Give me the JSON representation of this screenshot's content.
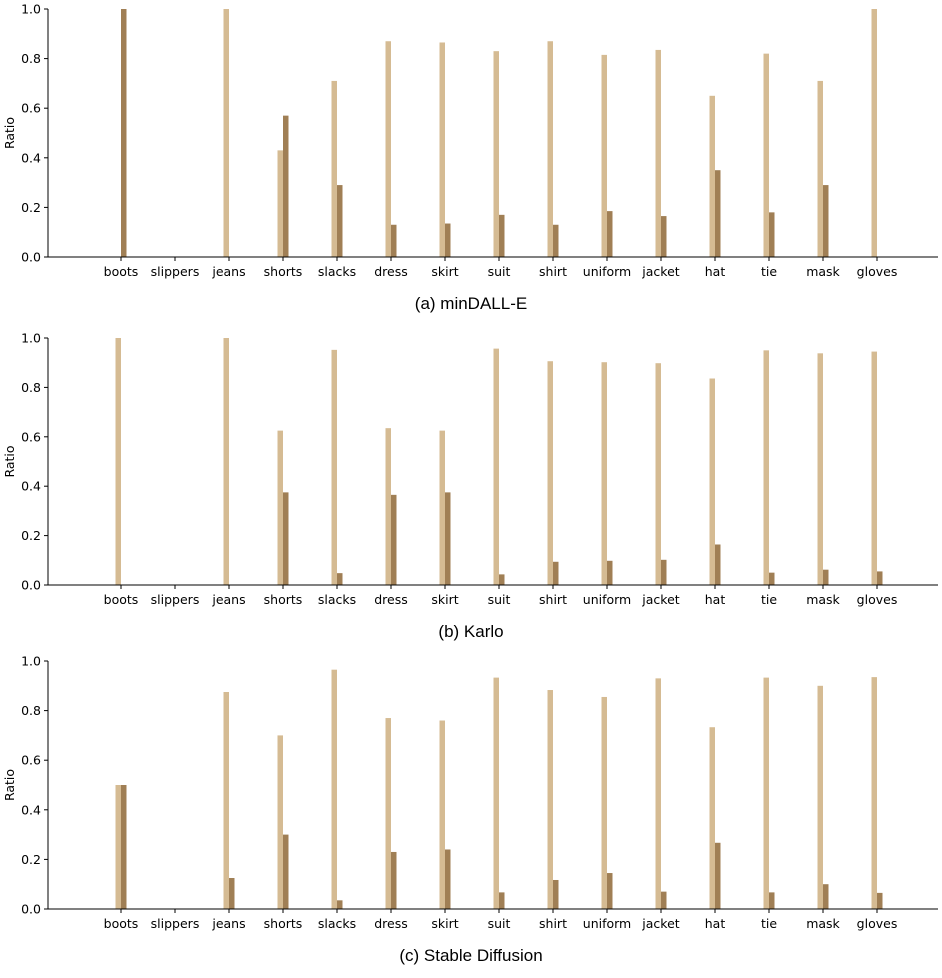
{
  "colors": {
    "light": "#d5bb93",
    "dark": "#a07f55",
    "axis": "#000000"
  },
  "chart_data": [
    {
      "type": "bar",
      "caption": "(a) minDALL-E",
      "ylabel": "Ratio",
      "ylim": [
        0,
        1.0
      ],
      "yticks": [
        "0.0",
        "0.2",
        "0.4",
        "0.6",
        "0.8",
        "1.0"
      ],
      "categories": [
        "boots",
        "slippers",
        "jeans",
        "shorts",
        "slacks",
        "dress",
        "skirt",
        "suit",
        "shirt",
        "uniform",
        "jacket",
        "hat",
        "tie",
        "mask",
        "gloves"
      ],
      "series": [
        {
          "values": [
            0,
            0,
            1.0,
            0.43,
            0.71,
            0.87,
            0.865,
            0.83,
            0.87,
            0.815,
            0.835,
            0.65,
            0.82,
            0.71,
            1.0
          ]
        },
        {
          "values": [
            1.0,
            0,
            0,
            0.57,
            0.29,
            0.13,
            0.135,
            0.17,
            0.13,
            0.185,
            0.165,
            0.35,
            0.18,
            0.29,
            0
          ]
        }
      ]
    },
    {
      "type": "bar",
      "caption": "(b) Karlo",
      "ylabel": "Ratio",
      "ylim": [
        0,
        1.0
      ],
      "yticks": [
        "0.0",
        "0.2",
        "0.4",
        "0.6",
        "0.8",
        "1.0"
      ],
      "categories": [
        "boots",
        "slippers",
        "jeans",
        "shorts",
        "slacks",
        "dress",
        "skirt",
        "suit",
        "shirt",
        "uniform",
        "jacket",
        "hat",
        "tie",
        "mask",
        "gloves"
      ],
      "series": [
        {
          "values": [
            1.0,
            0,
            1.0,
            0.625,
            0.952,
            0.635,
            0.625,
            0.957,
            0.906,
            0.902,
            0.898,
            0.836,
            0.95,
            0.938,
            0.945
          ]
        },
        {
          "values": [
            0,
            0,
            0,
            0.375,
            0.048,
            0.365,
            0.375,
            0.043,
            0.094,
            0.098,
            0.102,
            0.164,
            0.05,
            0.062,
            0.055
          ]
        }
      ]
    },
    {
      "type": "bar",
      "caption": "(c) Stable Diffusion",
      "ylabel": "Ratio",
      "ylim": [
        0,
        1.0
      ],
      "yticks": [
        "0.0",
        "0.2",
        "0.4",
        "0.6",
        "0.8",
        "1.0"
      ],
      "categories": [
        "boots",
        "slippers",
        "jeans",
        "shorts",
        "slacks",
        "dress",
        "skirt",
        "suit",
        "shirt",
        "uniform",
        "jacket",
        "hat",
        "tie",
        "mask",
        "gloves"
      ],
      "series": [
        {
          "values": [
            0.5,
            0,
            0.875,
            0.7,
            0.965,
            0.77,
            0.76,
            0.933,
            0.883,
            0.855,
            0.93,
            0.733,
            0.933,
            0.9,
            0.935
          ]
        },
        {
          "values": [
            0.5,
            0,
            0.125,
            0.3,
            0.035,
            0.23,
            0.24,
            0.067,
            0.117,
            0.145,
            0.07,
            0.267,
            0.067,
            0.1,
            0.065
          ]
        }
      ]
    }
  ]
}
